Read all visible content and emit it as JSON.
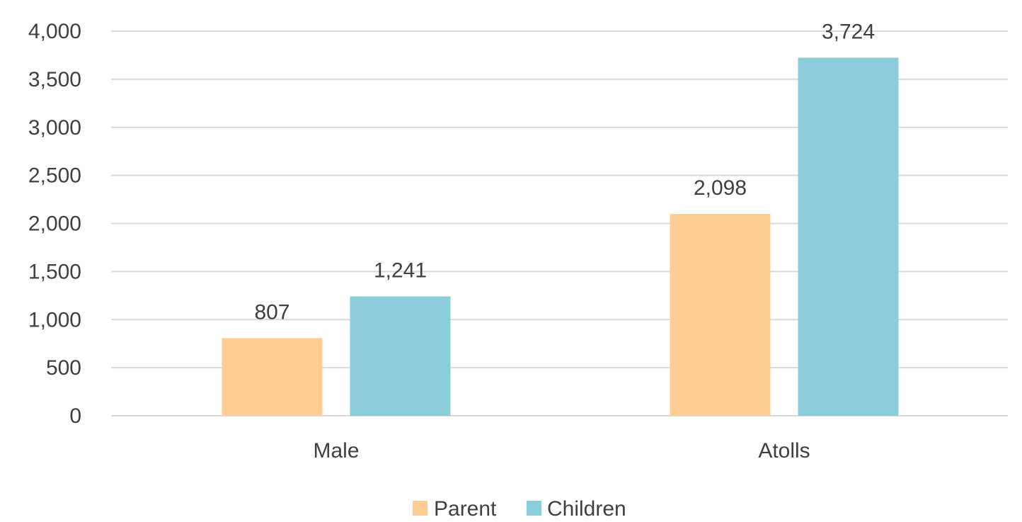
{
  "chart_data": {
    "type": "bar",
    "title": "",
    "xlabel": "",
    "ylabel": "",
    "categories": [
      "Male",
      "Atolls"
    ],
    "series": [
      {
        "name": "Parent",
        "values": [
          807,
          2098
        ],
        "data_labels": [
          "807",
          "2,098"
        ],
        "color": "#FFCC91"
      },
      {
        "name": "Children",
        "values": [
          1241,
          3724
        ],
        "data_labels": [
          "1,241",
          "3,724"
        ],
        "color": "#8BCDD9"
      }
    ],
    "ylim": [
      0,
      4000
    ],
    "y_ticks": [
      0,
      500,
      1000,
      1500,
      2000,
      2500,
      3000,
      3500,
      4000
    ],
    "y_tick_labels": [
      "0",
      "500",
      "1,000",
      "1,500",
      "2,000",
      "2,500",
      "3,000",
      "3,500",
      "4,000"
    ],
    "grid": true,
    "legend": {
      "position": "bottom",
      "entries": [
        "Parent",
        "Children"
      ]
    },
    "gridline_color": "#d9d9d9",
    "text_color": "#404040"
  }
}
